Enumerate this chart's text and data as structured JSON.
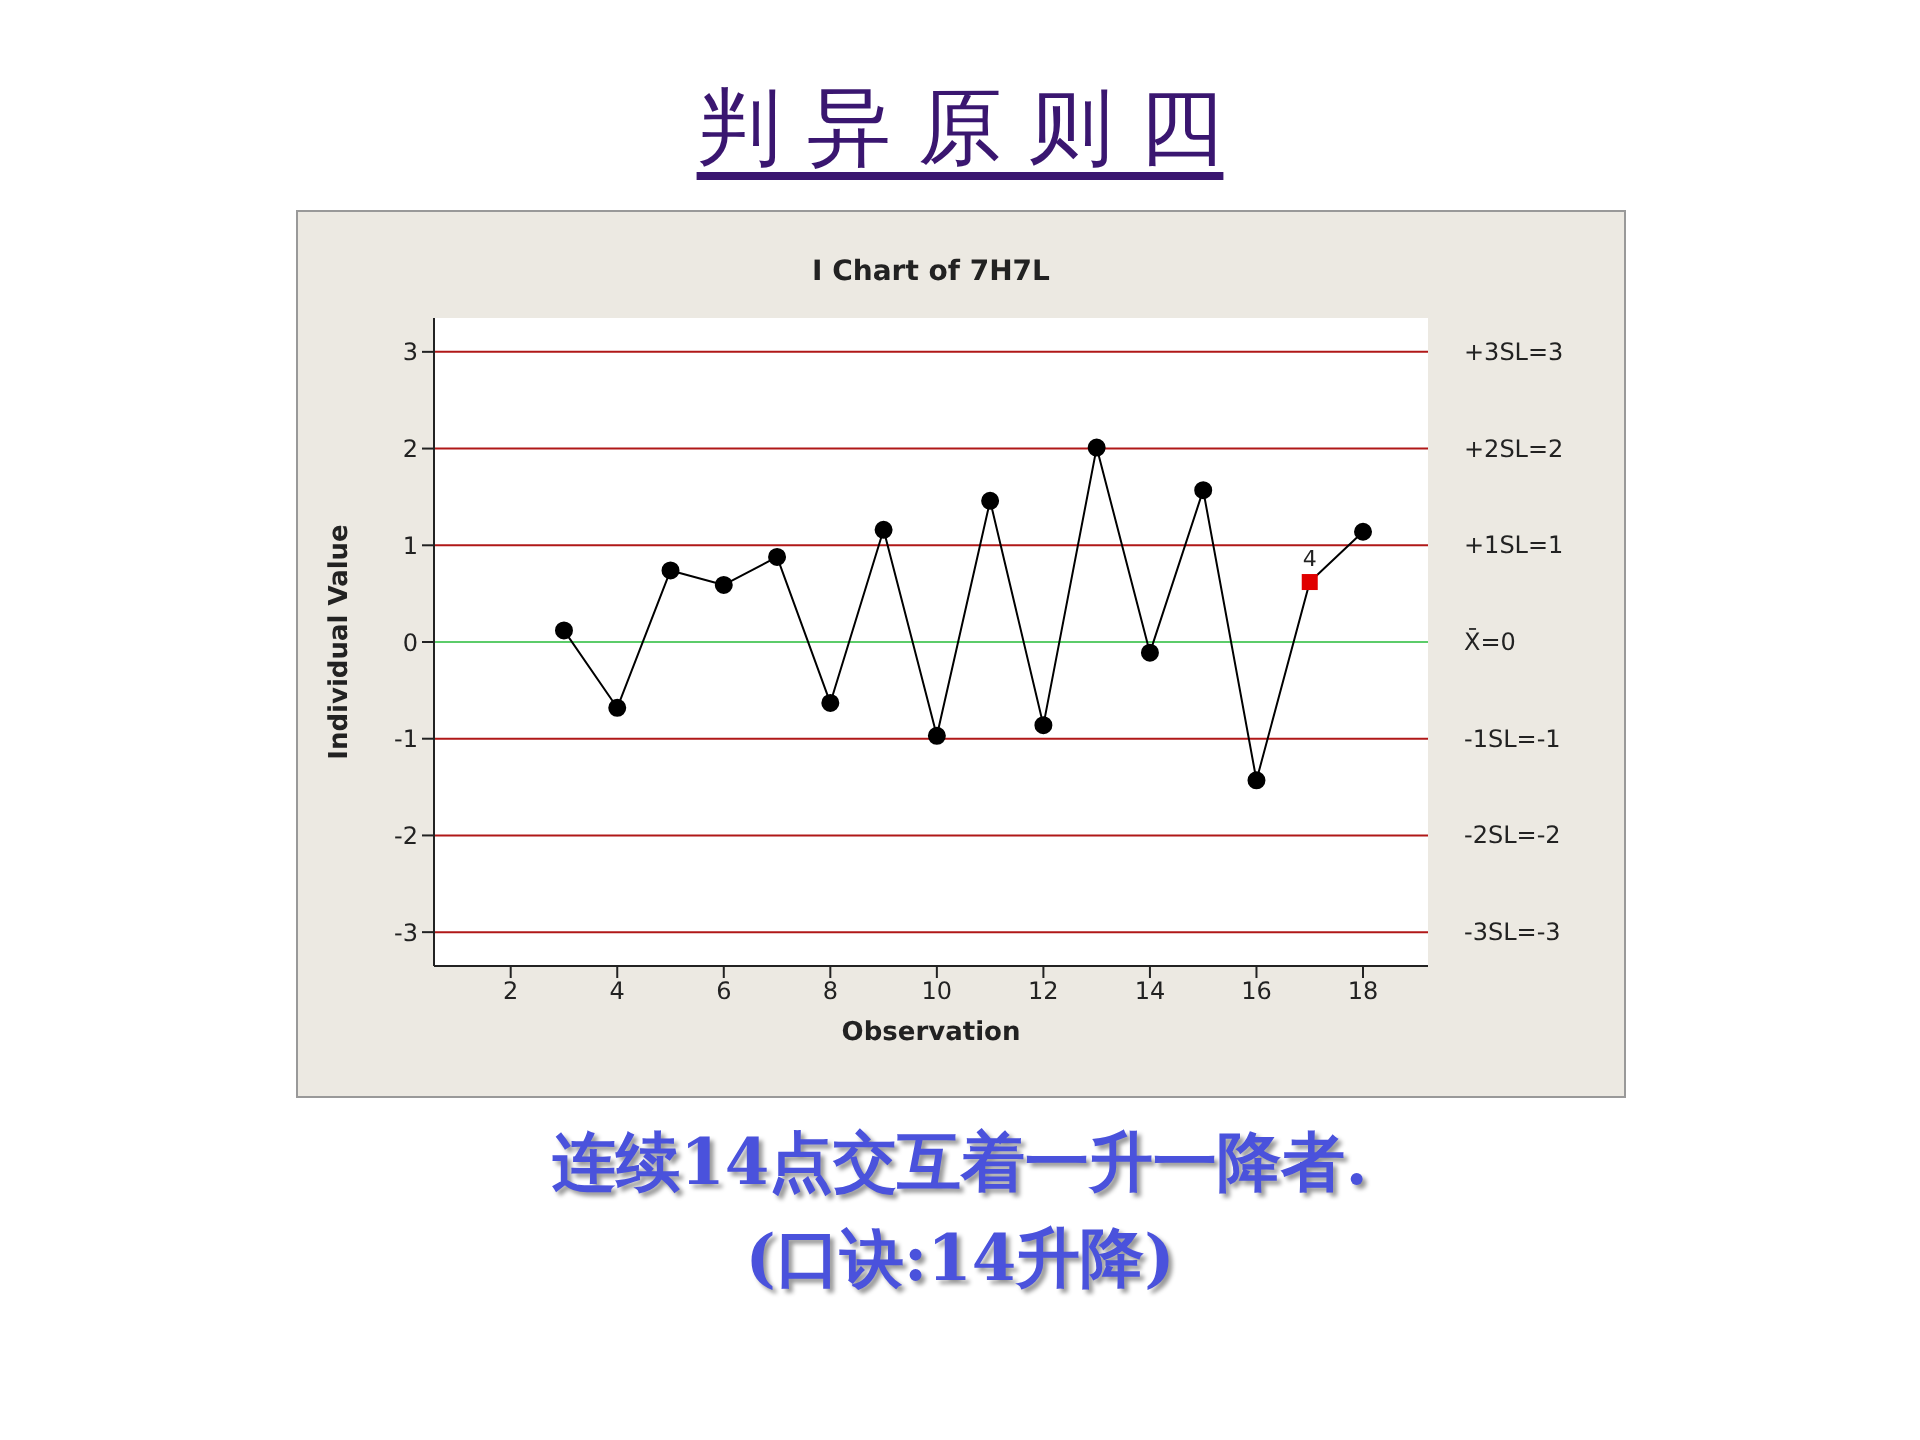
{
  "chart_data": {
    "type": "line",
    "title": "判 异 原 则 四",
    "subtitle": "I Chart of 7H7L",
    "xlabel": "Observation",
    "ylabel": "Individual Value",
    "x": [
      3,
      4,
      5,
      6,
      7,
      8,
      9,
      10,
      11,
      12,
      13,
      14,
      15,
      16,
      17,
      18
    ],
    "series": [
      {
        "color": "#000000",
        "colors": [
          "#000000",
          "#000000",
          "#000000",
          "#000000",
          "#000000",
          "#000000",
          "#000000",
          "#000000",
          "#000000",
          "#000000",
          "#000000",
          "#000000",
          "#000000",
          "#000000",
          "#e00000",
          "#000000"
        ],
        "values": [
          0.12,
          -0.68,
          0.74,
          0.59,
          0.88,
          -0.63,
          1.16,
          -0.97,
          1.46,
          -0.86,
          2.01,
          -0.11,
          1.57,
          -1.43,
          0.62,
          1.14
        ]
      }
    ],
    "marker": "circle",
    "line_style": "solid",
    "legend": false,
    "grid": false,
    "xlim": [
      0.56,
      19.22
    ],
    "xticks": [
      2,
      4,
      6,
      8,
      10,
      12,
      14,
      16,
      18
    ],
    "ylim": [
      -3.35,
      3.35
    ],
    "yticks": [
      -3,
      -2,
      -1,
      0,
      1,
      2,
      3
    ],
    "ref_lines": [
      {
        "axis": "y",
        "value": 3,
        "label": "+3SL=3",
        "color": "#b01818"
      },
      {
        "axis": "y",
        "value": 2,
        "label": "+2SL=2",
        "color": "#b01818"
      },
      {
        "axis": "y",
        "value": 1,
        "label": "+1SL=1",
        "color": "#b01818"
      },
      {
        "axis": "y",
        "value": 0,
        "label": "X̄=0",
        "color": "#5ccc6a"
      },
      {
        "axis": "y",
        "value": -1,
        "label": "-1SL=-1",
        "color": "#b01818"
      },
      {
        "axis": "y",
        "value": -2,
        "label": "-2SL=-2",
        "color": "#b01818"
      },
      {
        "axis": "y",
        "value": -3,
        "label": "-3SL=-3",
        "color": "#b01818"
      }
    ],
    "annotations": [
      {
        "text": "4",
        "x": 17,
        "y": 0.62
      },
      "连续14点交互着一升一降者.",
      "(口诀:14升降)"
    ]
  }
}
